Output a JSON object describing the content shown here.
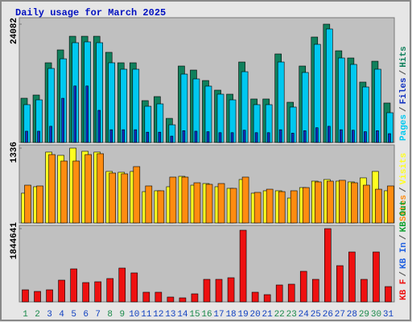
{
  "chart_data": [
    {
      "type": "bar",
      "title": "Daily usage for March 2025",
      "legend_separator": "/",
      "ylim": [
        0,
        24082
      ],
      "yticks": [
        24082
      ],
      "series": [
        {
          "name": "Pages",
          "color": "#00c8f0",
          "values": [
            7700,
            8680,
            15070,
            17030,
            20310,
            20480,
            20310,
            16220,
            14910,
            14910,
            7370,
            7860,
            3600,
            13920,
            12940,
            11470,
            9830,
            8680,
            14410,
            7700,
            7700,
            16380,
            7210,
            14250,
            19980,
            23100,
            17200,
            15890,
            11300,
            14910,
            6060
          ]
        },
        {
          "name": "Files",
          "color": "#1030c0",
          "values": [
            2300,
            2300,
            3300,
            9000,
            11500,
            11500,
            6550,
            2600,
            2600,
            2600,
            2100,
            2100,
            1300,
            2400,
            2300,
            2200,
            2000,
            2000,
            2500,
            2000,
            2000,
            2600,
            1900,
            2400,
            3000,
            3300,
            2600,
            2500,
            2200,
            2400,
            1800
          ]
        },
        {
          "name": "Hits",
          "color": "#10805c",
          "values": [
            9010,
            9660,
            16220,
            18840,
            21620,
            21620,
            21620,
            18350,
            16220,
            16220,
            8520,
            9340,
            4910,
            15560,
            14740,
            12610,
            10650,
            9830,
            16380,
            8850,
            8850,
            18020,
            8190,
            15560,
            21460,
            24082,
            18670,
            17200,
            12290,
            16540,
            8030
          ]
        }
      ]
    },
    {
      "type": "bar",
      "ylim": [
        0,
        1336
      ],
      "yticks": [
        1336
      ],
      "series": [
        {
          "name": "Sites",
          "color": "#ff8c10",
          "values": [
            675,
            661,
            1221,
            1106,
            1106,
            1221,
            1236,
            891,
            877,
            1006,
            661,
            575,
            819,
            819,
            718,
            690,
            704,
            618,
            819,
            546,
            603,
            560,
            575,
            632,
            733,
            747,
            762,
            718,
            675,
            603,
            661
          ]
        },
        {
          "name": "Visits",
          "color": "#ffff20",
          "values": [
            532,
            647,
            1265,
            1207,
            1336,
            1279,
            1265,
            920,
            905,
            920,
            560,
            575,
            647,
            833,
            675,
            704,
            647,
            618,
            776,
            532,
            575,
            575,
            445,
            632,
            747,
            776,
            747,
            733,
            805,
            920,
            575
          ]
        }
      ]
    },
    {
      "type": "bar",
      "ylim": [
        0,
        1844641
      ],
      "yticks": [
        1844641
      ],
      "categories": [
        "1",
        "2",
        "3",
        "4",
        "5",
        "6",
        "7",
        "8",
        "9",
        "10",
        "11",
        "12",
        "13",
        "14",
        "15",
        "16",
        "17",
        "18",
        "19",
        "20",
        "21",
        "22",
        "23",
        "24",
        "25",
        "26",
        "27",
        "28",
        "29",
        "30",
        "31"
      ],
      "category_colors": [
        "#1a8a4a",
        "#1a8a4a",
        "#1040c0",
        "#1040c0",
        "#1040c0",
        "#1040c0",
        "#1040c0",
        "#1a8a4a",
        "#1a8a4a",
        "#1040c0",
        "#1040c0",
        "#1040c0",
        "#1040c0",
        "#1040c0",
        "#1a8a4a",
        "#1a8a4a",
        "#1040c0",
        "#1040c0",
        "#1040c0",
        "#1040c0",
        "#1040c0",
        "#1a8a4a",
        "#1a8a4a",
        "#1040c0",
        "#1040c0",
        "#1040c0",
        "#1040c0",
        "#1040c0",
        "#1a8a4a",
        "#1a8a4a",
        "#1040c0"
      ],
      "series": [
        {
          "name": "KB F",
          "color": "#ee1010",
          "values": [
            304000,
            263500,
            304000,
            547300,
            831100,
            486500,
            506800,
            587900,
            851400,
            729800,
            243300,
            243300,
            121600,
            101400,
            202700,
            567600,
            567600,
            608100,
            1804100,
            243300,
            182400,
            425700,
            446000,
            770300,
            567600,
            1844641,
            912200,
            1256800,
            567600,
            1256800,
            385100
          ]
        },
        {
          "name": "KB In",
          "color": "#2060e0",
          "values": [
            0,
            0,
            0,
            0,
            0,
            0,
            0,
            0,
            0,
            0,
            0,
            0,
            0,
            0,
            0,
            0,
            0,
            0,
            0,
            0,
            0,
            0,
            0,
            0,
            0,
            0,
            0,
            0,
            0,
            0,
            0
          ]
        },
        {
          "name": "KB Out",
          "color": "#10a030",
          "values": [
            0,
            0,
            0,
            0,
            0,
            0,
            0,
            0,
            0,
            0,
            0,
            0,
            0,
            0,
            0,
            0,
            0,
            0,
            0,
            0,
            0,
            0,
            0,
            0,
            0,
            0,
            0,
            0,
            0,
            0,
            0
          ]
        }
      ]
    }
  ]
}
